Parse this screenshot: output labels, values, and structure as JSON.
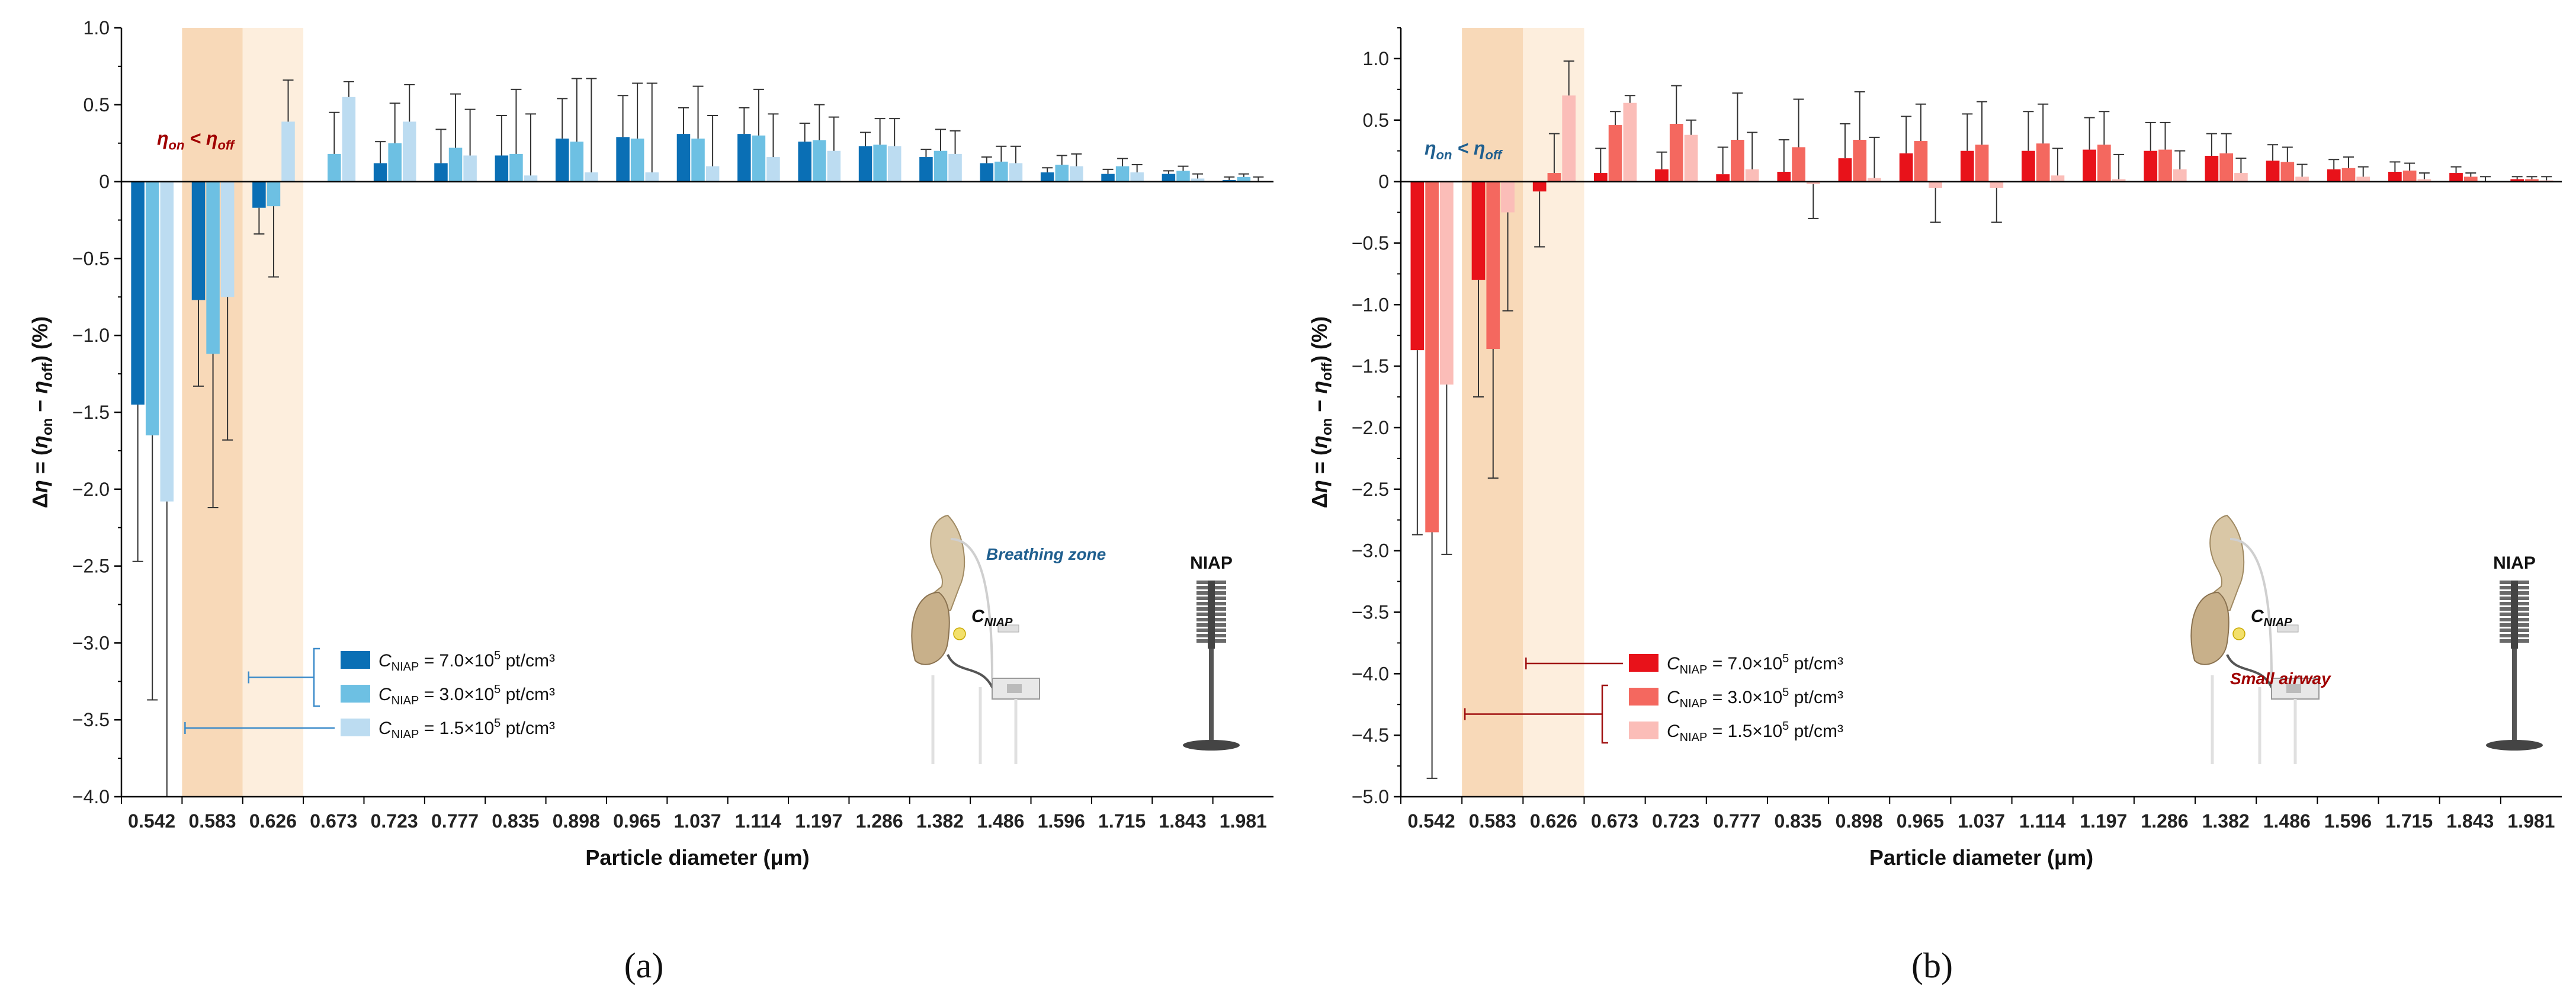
{
  "charts": [
    {
      "id": "a",
      "type": "bar",
      "panel_label": "(a)",
      "xlabel": "Particle diameter (μm)",
      "ylabel_prefix": "Δη = (η",
      "ylabel": "Δη = (ηon − ηoff) (%)",
      "ylim": [
        -4.0,
        1.0
      ],
      "yticks": [
        -4.0,
        -3.5,
        -3.0,
        -2.5,
        -2.0,
        -1.5,
        -1.0,
        -0.5,
        0,
        0.5,
        1.0
      ],
      "ytick_labels": [
        "−4.0",
        "−3.5",
        "−3.0",
        "−2.5",
        "−2.0",
        "−1.5",
        "−1.0",
        "−0.5",
        "0",
        "0.5",
        "1.0"
      ],
      "categories": [
        "0.542",
        "0.583",
        "0.626",
        "0.673",
        "0.723",
        "0.777",
        "0.835",
        "0.898",
        "0.965",
        "1.037",
        "1.114",
        "1.197",
        "1.286",
        "1.382",
        "1.486",
        "1.596",
        "1.715",
        "1.843",
        "1.981"
      ],
      "highlight_categories": [
        "0.583",
        "0.626"
      ],
      "highlight_color": "#c00000",
      "shade_colors": [
        "#f8d9b8",
        "#fdeedd"
      ],
      "series": [
        {
          "name": "C_NIAP = 7.0×10^5 pt/cm³",
          "color": "#0a6fb5",
          "values": [
            -1.45,
            -0.77,
            -0.17,
            0,
            0.12,
            0.12,
            0.17,
            0.28,
            0.29,
            0.31,
            0.31,
            0.26,
            0.23,
            0.16,
            0.12,
            0.06,
            0.05,
            0.05,
            0.01
          ],
          "errors": [
            1.02,
            0.56,
            0.17,
            0,
            0.14,
            0.22,
            0.26,
            0.26,
            0.27,
            0.17,
            0.17,
            0.12,
            0.09,
            0.05,
            0.04,
            0.03,
            0.03,
            0.02,
            0.02
          ]
        },
        {
          "name": "C_NIAP = 3.0×10^5 pt/cm³",
          "color": "#6dc0e3",
          "values": [
            -1.65,
            -1.12,
            -0.16,
            0.18,
            0.25,
            0.22,
            0.18,
            0.26,
            0.28,
            0.28,
            0.3,
            0.27,
            0.24,
            0.2,
            0.13,
            0.11,
            0.1,
            0.07,
            0.03
          ],
          "errors": [
            1.72,
            1.0,
            0.46,
            0.27,
            0.26,
            0.35,
            0.42,
            0.41,
            0.36,
            0.34,
            0.3,
            0.23,
            0.17,
            0.14,
            0.1,
            0.06,
            0.05,
            0.03,
            0.02
          ]
        },
        {
          "name": "C_NIAP = 1.5×10^5 pt/cm³",
          "color": "#bcdcf1",
          "values": [
            -2.08,
            -0.75,
            0.39,
            0.55,
            0.39,
            0.17,
            0.04,
            0.06,
            0.06,
            0.1,
            0.16,
            0.2,
            0.23,
            0.18,
            0.12,
            0.1,
            0.06,
            0.02,
            0.0
          ],
          "errors": [
            1.92,
            0.93,
            0.27,
            0.1,
            0.24,
            0.3,
            0.4,
            0.61,
            0.58,
            0.33,
            0.28,
            0.22,
            0.18,
            0.15,
            0.11,
            0.08,
            0.05,
            0.03,
            0.03
          ]
        }
      ],
      "annotation": {
        "text": "η",
        "sub1": "on",
        "lt": " < η",
        "sub2": "off",
        "color": "#a00000"
      },
      "illustration_label": "Breathing zone",
      "illustration_label_color": "#1f5f8f",
      "c_niap_label": "C",
      "c_niap_sub": "NIAP",
      "device_label": "NIAP",
      "legend": {
        "prefix": "C",
        "sub": "NIAP",
        "items": [
          {
            "value": " = 7.0×10",
            "exp": "5",
            "unit": " pt/cm³"
          },
          {
            "value": " = 3.0×10",
            "exp": "5",
            "unit": " pt/cm³"
          },
          {
            "value": " = 1.5×10",
            "exp": "5",
            "unit": " pt/cm³"
          }
        ]
      }
    },
    {
      "id": "b",
      "type": "bar",
      "panel_label": "(b)",
      "xlabel": "Particle diameter (μm)",
      "ylabel": "Δη = (ηon − ηoff) (%)",
      "ylim": [
        -5.0,
        1.25
      ],
      "yticks": [
        -5.0,
        -4.5,
        -4.0,
        -3.5,
        -3.0,
        -2.5,
        -2.0,
        -1.5,
        -1.0,
        -0.5,
        0,
        0.5,
        1.0
      ],
      "ytick_labels": [
        "−5.0",
        "−4.5",
        "−4.0",
        "−3.5",
        "−3.0",
        "−2.5",
        "−2.0",
        "−1.5",
        "−1.0",
        "−0.5",
        "0",
        "0.5",
        "1.0"
      ],
      "categories": [
        "0.542",
        "0.583",
        "0.626",
        "0.673",
        "0.723",
        "0.777",
        "0.835",
        "0.898",
        "0.965",
        "1.037",
        "1.114",
        "1.197",
        "1.286",
        "1.382",
        "1.486",
        "1.596",
        "1.715",
        "1.843",
        "1.981"
      ],
      "highlight_categories": [
        "0.583",
        "0.626"
      ],
      "highlight_color": "#c00000",
      "shade_colors": [
        "#f8d9b8",
        "#fdeedd"
      ],
      "series": [
        {
          "name": "C_NIAP = 7.0×10^5 pt/cm³",
          "color": "#e8121a",
          "values": [
            -1.37,
            -0.8,
            -0.08,
            0.07,
            0.1,
            0.06,
            0.08,
            0.19,
            0.23,
            0.25,
            0.25,
            0.26,
            0.25,
            0.21,
            0.17,
            0.1,
            0.08,
            0.07,
            0.02
          ],
          "errors": [
            1.5,
            0.95,
            0.45,
            0.2,
            0.14,
            0.22,
            0.26,
            0.28,
            0.3,
            0.3,
            0.32,
            0.26,
            0.23,
            0.18,
            0.13,
            0.08,
            0.08,
            0.05,
            0.02
          ]
        },
        {
          "name": "C_NIAP = 3.0×10^5 pt/cm³",
          "color": "#f4685f",
          "values": [
            -2.85,
            -1.36,
            0.07,
            0.46,
            0.47,
            0.34,
            0.28,
            0.34,
            0.33,
            0.3,
            0.31,
            0.3,
            0.26,
            0.23,
            0.16,
            0.11,
            0.09,
            0.04,
            0.02
          ],
          "errors": [
            2.0,
            1.05,
            0.32,
            0.11,
            0.31,
            0.38,
            0.39,
            0.39,
            0.3,
            0.35,
            0.32,
            0.27,
            0.22,
            0.16,
            0.12,
            0.09,
            0.06,
            0.03,
            0.02
          ]
        },
        {
          "name": "C_NIAP = 1.5×10^5 pt/cm³",
          "color": "#fbbdb8",
          "values": [
            -1.65,
            -0.25,
            0.7,
            0.64,
            0.38,
            0.1,
            -0.02,
            0.03,
            -0.05,
            -0.05,
            0.05,
            0.02,
            0.1,
            0.07,
            0.04,
            0.04,
            0.02,
            0.0,
            0.01
          ],
          "errors": [
            1.38,
            0.8,
            0.28,
            0.06,
            0.12,
            0.3,
            0.28,
            0.33,
            0.28,
            0.28,
            0.22,
            0.2,
            0.15,
            0.12,
            0.1,
            0.08,
            0.05,
            0.04,
            0.03
          ]
        }
      ],
      "annotation": {
        "text": "η",
        "sub1": "on",
        "lt": " < η",
        "sub2": "off",
        "color": "#1f5f8f"
      },
      "illustration_label": "Small airway",
      "illustration_label_color": "#a00000",
      "c_niap_label": "C",
      "c_niap_sub": "NIAP",
      "device_label": "NIAP",
      "legend": {
        "prefix": "C",
        "sub": "NIAP",
        "items": [
          {
            "value": " = 7.0×10",
            "exp": "5",
            "unit": " pt/cm³"
          },
          {
            "value": " = 3.0×10",
            "exp": "5",
            "unit": " pt/cm³"
          },
          {
            "value": " = 1.5×10",
            "exp": "5",
            "unit": " pt/cm³"
          }
        ]
      }
    }
  ],
  "chart_data": [
    {
      "type": "bar",
      "panel": "(a)",
      "xlabel": "Particle diameter (μm)",
      "ylabel": "Δη = (ηon − ηoff) (%)",
      "ylim": [
        -4.0,
        1.0
      ],
      "categories": [
        "0.542",
        "0.583",
        "0.626",
        "0.673",
        "0.723",
        "0.777",
        "0.835",
        "0.898",
        "0.965",
        "1.037",
        "1.114",
        "1.197",
        "1.286",
        "1.382",
        "1.486",
        "1.596",
        "1.715",
        "1.843",
        "1.981"
      ],
      "series": [
        {
          "name": "C_NIAP = 7.0×10^5 pt/cm³",
          "values": [
            -1.45,
            -0.77,
            -0.17,
            0,
            0.12,
            0.12,
            0.17,
            0.28,
            0.29,
            0.31,
            0.31,
            0.26,
            0.23,
            0.16,
            0.12,
            0.06,
            0.05,
            0.05,
            0.01
          ]
        },
        {
          "name": "C_NIAP = 3.0×10^5 pt/cm³",
          "values": [
            -1.65,
            -1.12,
            -0.16,
            0.18,
            0.25,
            0.22,
            0.18,
            0.26,
            0.28,
            0.28,
            0.3,
            0.27,
            0.24,
            0.2,
            0.13,
            0.11,
            0.1,
            0.07,
            0.03
          ]
        },
        {
          "name": "C_NIAP = 1.5×10^5 pt/cm³",
          "values": [
            -2.08,
            -0.75,
            0.39,
            0.55,
            0.39,
            0.17,
            0.04,
            0.06,
            0.06,
            0.1,
            0.16,
            0.2,
            0.23,
            0.18,
            0.12,
            0.1,
            0.06,
            0.02,
            0.0
          ]
        }
      ]
    },
    {
      "type": "bar",
      "panel": "(b)",
      "xlabel": "Particle diameter (μm)",
      "ylabel": "Δη = (ηon − ηoff) (%)",
      "ylim": [
        -5.0,
        1.25
      ],
      "categories": [
        "0.542",
        "0.583",
        "0.626",
        "0.673",
        "0.723",
        "0.777",
        "0.835",
        "0.898",
        "0.965",
        "1.037",
        "1.114",
        "1.197",
        "1.286",
        "1.382",
        "1.486",
        "1.596",
        "1.715",
        "1.843",
        "1.981"
      ],
      "series": [
        {
          "name": "C_NIAP = 7.0×10^5 pt/cm³",
          "values": [
            -1.37,
            -0.8,
            -0.08,
            0.07,
            0.1,
            0.06,
            0.08,
            0.19,
            0.23,
            0.25,
            0.25,
            0.26,
            0.25,
            0.21,
            0.17,
            0.1,
            0.08,
            0.07,
            0.02
          ]
        },
        {
          "name": "C_NIAP = 3.0×10^5 pt/cm³",
          "values": [
            -2.85,
            -1.36,
            0.07,
            0.46,
            0.47,
            0.34,
            0.28,
            0.34,
            0.33,
            0.3,
            0.31,
            0.3,
            0.26,
            0.23,
            0.16,
            0.11,
            0.09,
            0.04,
            0.02
          ]
        },
        {
          "name": "C_NIAP = 1.5×10^5 pt/cm³",
          "values": [
            -1.65,
            -0.25,
            0.7,
            0.64,
            0.38,
            0.1,
            -0.02,
            0.03,
            -0.05,
            -0.05,
            0.05,
            0.02,
            0.1,
            0.07,
            0.04,
            0.04,
            0.02,
            0.0,
            0.01
          ]
        }
      ]
    }
  ]
}
